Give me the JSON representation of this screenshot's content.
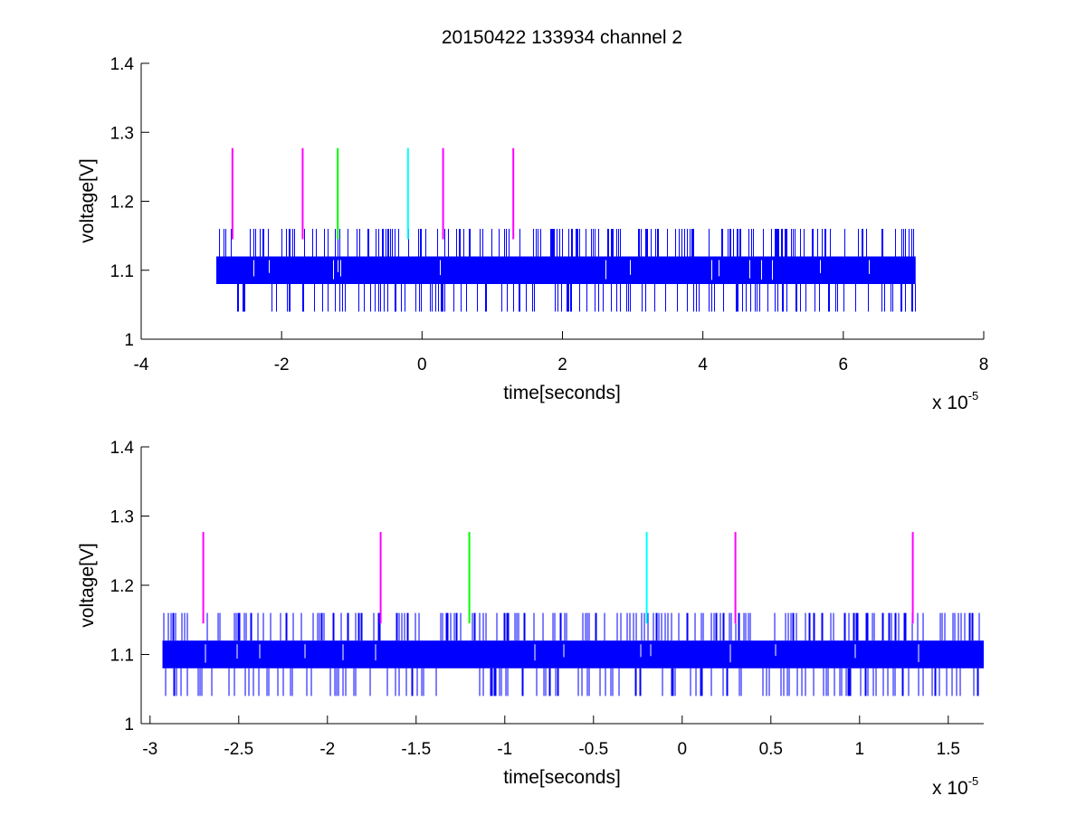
{
  "chart_data": [
    {
      "type": "line",
      "title": "20150422 133934 channel 2",
      "xlabel": "time[seconds]",
      "ylabel": "voltage[V]",
      "x_multiplier_label": "x 10",
      "x_multiplier_exponent": "-5",
      "xlim": [
        -4,
        8
      ],
      "ylim": [
        1,
        1.4
      ],
      "xticks": [
        -4,
        -2,
        0,
        2,
        4,
        6,
        8
      ],
      "xtick_labels": [
        "-4",
        "-2",
        "0",
        "2",
        "4",
        "6",
        "8"
      ],
      "yticks": [
        1,
        1.1,
        1.2,
        1.3,
        1.4
      ],
      "ytick_labels": [
        "1",
        "1.1",
        "1.2",
        "1.3",
        "1.4"
      ],
      "grid": false,
      "series": [
        {
          "color": "#0000ff",
          "kind": "noisy digital signal",
          "x_range": [
            -2.93,
            7.03
          ],
          "band": [
            1.08,
            1.12
          ],
          "spike_high": 1.16,
          "spike_low": 1.04
        }
      ],
      "markers": [
        {
          "x": -2.7,
          "color": "#ff00ff",
          "y_from": 1.145,
          "y_to": 1.277
        },
        {
          "x": -1.7,
          "color": "#ff00ff",
          "y_from": 1.145,
          "y_to": 1.277
        },
        {
          "x": -1.2,
          "color": "#00ff00",
          "y_from": 1.145,
          "y_to": 1.277
        },
        {
          "x": -0.2,
          "color": "#00ffff",
          "y_from": 1.145,
          "y_to": 1.277
        },
        {
          "x": 0.3,
          "color": "#ff00ff",
          "y_from": 1.145,
          "y_to": 1.277
        },
        {
          "x": 1.3,
          "color": "#ff00ff",
          "y_from": 1.145,
          "y_to": 1.277
        }
      ]
    },
    {
      "type": "line",
      "title": "",
      "xlabel": "time[seconds]",
      "ylabel": "voltage[V]",
      "x_multiplier_label": "x 10",
      "x_multiplier_exponent": "-5",
      "xlim": [
        -3.05,
        1.7
      ],
      "ylim": [
        1,
        1.4
      ],
      "xticks": [
        -3,
        -2.5,
        -2,
        -1.5,
        -1,
        -0.5,
        0,
        0.5,
        1,
        1.5
      ],
      "xtick_labels": [
        "-3",
        "-2.5",
        "-2",
        "-1.5",
        "-1",
        "-0.5",
        "0",
        "0.5",
        "1",
        "1.5"
      ],
      "yticks": [
        1,
        1.1,
        1.2,
        1.3,
        1.4
      ],
      "ytick_labels": [
        "1",
        "1.1",
        "1.2",
        "1.3",
        "1.4"
      ],
      "grid": false,
      "series": [
        {
          "color": "#0000ff",
          "kind": "noisy digital signal",
          "x_range": [
            -2.93,
            1.7
          ],
          "band": [
            1.08,
            1.12
          ],
          "spike_high": 1.16,
          "spike_low": 1.04
        }
      ],
      "markers": [
        {
          "x": -2.7,
          "color": "#ff00ff",
          "y_from": 1.145,
          "y_to": 1.277
        },
        {
          "x": -1.7,
          "color": "#ff00ff",
          "y_from": 1.145,
          "y_to": 1.277
        },
        {
          "x": -1.2,
          "color": "#00ff00",
          "y_from": 1.145,
          "y_to": 1.277
        },
        {
          "x": -0.2,
          "color": "#00ffff",
          "y_from": 1.145,
          "y_to": 1.277
        },
        {
          "x": 0.3,
          "color": "#ff00ff",
          "y_from": 1.145,
          "y_to": 1.277
        },
        {
          "x": 1.3,
          "color": "#ff00ff",
          "y_from": 1.145,
          "y_to": 1.277
        }
      ]
    }
  ]
}
